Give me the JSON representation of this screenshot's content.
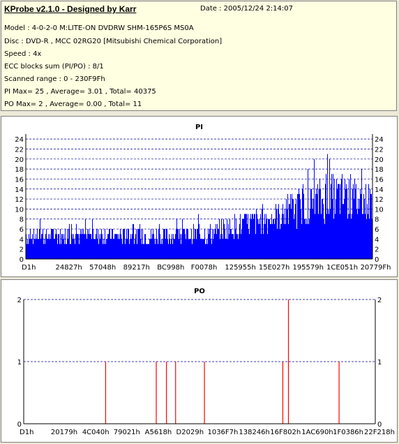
{
  "info": {
    "title": "KProbe v2.1.0 - Designed by Karr",
    "date": "Date : 2005/12/24 2:14:07",
    "lines": [
      "Model : 4-0-2-0 M:LITE-ON DVDRW SHM-165P6S MS0A",
      "Disc : DVD-R , MCC 02RG20  [Mitsubishi Chemical Corporation]",
      "Speed : 4x",
      "ECC blocks sum (PI/PO) : 8/1",
      "Scanned range : 0 - 230F9Fh",
      "PI Max= 25 , Average= 3.01 , Total= 40375",
      "PO Max= 2 , Average= 0.00 , Total= 11"
    ]
  },
  "colors": {
    "bar": "#0000ff",
    "po_line": "#ff0000",
    "grid": "#0000a0",
    "title": "#000080"
  },
  "chart_data": [
    {
      "type": "bar",
      "title": "PI",
      "ylim": [
        0,
        25
      ],
      "yticks": [
        0,
        2,
        4,
        6,
        8,
        10,
        12,
        14,
        16,
        18,
        20,
        22,
        24
      ],
      "x_ticklabels": [
        "D1h",
        "24827h",
        "57048h",
        "89217h",
        "BC998h",
        "F0078h",
        "125955h",
        "15E027h",
        "195579h",
        "1CE051h",
        "20779Fh"
      ],
      "x_range": [
        0,
        2297759
      ],
      "profile": [
        {
          "pos": 0.0,
          "base": 4.6,
          "spread": 1.6,
          "spike": 8
        },
        {
          "pos": 0.2,
          "base": 4.8,
          "spread": 1.8,
          "spike": 8
        },
        {
          "pos": 0.4,
          "base": 4.6,
          "spread": 1.8,
          "spike": 9
        },
        {
          "pos": 0.52,
          "base": 5.0,
          "spread": 2.0,
          "spike": 11
        },
        {
          "pos": 0.6,
          "base": 6.5,
          "spread": 2.5,
          "spike": 11
        },
        {
          "pos": 0.7,
          "base": 8.0,
          "spread": 3.0,
          "spike": 12
        },
        {
          "pos": 0.8,
          "base": 10.5,
          "spread": 4.0,
          "spike": 18
        },
        {
          "pos": 0.9,
          "base": 12.5,
          "spread": 5.0,
          "spike": 25
        },
        {
          "pos": 1.0,
          "base": 11.5,
          "spread": 4.0,
          "spike": 16
        }
      ]
    },
    {
      "type": "bar",
      "title": "PO",
      "ylim": [
        0,
        2
      ],
      "yticks": [
        0,
        1,
        2
      ],
      "x_ticklabels": [
        "D1h",
        "20179h",
        "4C040h",
        "79021h",
        "A5618h",
        "D2029h",
        "1036F7h",
        "138246h",
        "16F802h",
        "1AC690h",
        "1F0386h",
        "22F218h"
      ],
      "x_range": [
        0,
        2297759
      ],
      "events": [
        {
          "x": 0.233,
          "value": 1
        },
        {
          "x": 0.377,
          "value": 1
        },
        {
          "x": 0.406,
          "value": 1
        },
        {
          "x": 0.432,
          "value": 1
        },
        {
          "x": 0.514,
          "value": 1
        },
        {
          "x": 0.737,
          "value": 1
        },
        {
          "x": 0.753,
          "value": 2
        },
        {
          "x": 0.897,
          "value": 1
        }
      ]
    }
  ]
}
